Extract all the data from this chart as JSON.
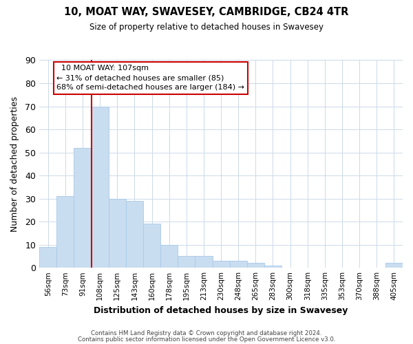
{
  "title": "10, MOAT WAY, SWAVESEY, CAMBRIDGE, CB24 4TR",
  "subtitle": "Size of property relative to detached houses in Swavesey",
  "xlabel": "Distribution of detached houses by size in Swavesey",
  "ylabel": "Number of detached properties",
  "bar_labels": [
    "56sqm",
    "73sqm",
    "91sqm",
    "108sqm",
    "125sqm",
    "143sqm",
    "160sqm",
    "178sqm",
    "195sqm",
    "213sqm",
    "230sqm",
    "248sqm",
    "265sqm",
    "283sqm",
    "300sqm",
    "318sqm",
    "335sqm",
    "353sqm",
    "370sqm",
    "388sqm",
    "405sqm"
  ],
  "bar_values": [
    9,
    31,
    52,
    70,
    30,
    29,
    19,
    10,
    5,
    5,
    3,
    3,
    2,
    1,
    0,
    0,
    0,
    0,
    0,
    0,
    2
  ],
  "bar_color": "#c9ddf0",
  "bar_edge_color": "#a8c8e8",
  "ylim": [
    0,
    90
  ],
  "yticks": [
    0,
    10,
    20,
    30,
    40,
    50,
    60,
    70,
    80,
    90
  ],
  "property_line_bar_index": 3,
  "property_line_color": "#cc0000",
  "annotation_title": "10 MOAT WAY: 107sqm",
  "annotation_line1": "← 31% of detached houses are smaller (85)",
  "annotation_line2": "68% of semi-detached houses are larger (184) →",
  "footer_line1": "Contains HM Land Registry data © Crown copyright and database right 2024.",
  "footer_line2": "Contains public sector information licensed under the Open Government Licence v3.0.",
  "background_color": "#ffffff",
  "grid_color": "#ccd9e8"
}
